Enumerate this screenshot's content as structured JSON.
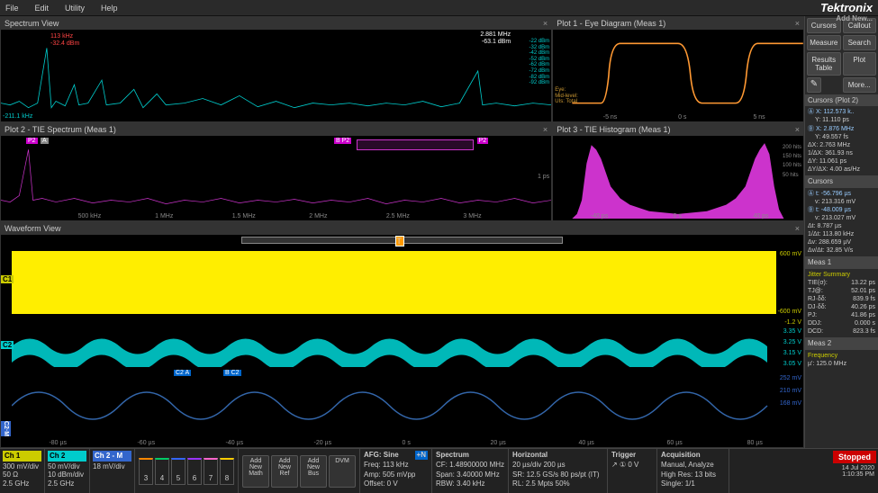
{
  "menu": {
    "file": "File",
    "edit": "Edit",
    "utility": "Utility",
    "help": "Help"
  },
  "brand": {
    "name": "Tektronix",
    "sub": "Add New..."
  },
  "panels": {
    "spectrum": {
      "title": "Spectrum View",
      "marker_freq": "113 kHz",
      "marker_amp": "-32.4 dBm",
      "readout_freq": "2.881 MHz",
      "readout_amp": "-63.1 dBm",
      "left_ref": "-211.1 kHz",
      "y_labels": [
        "-22 dBm",
        "-32 dBm",
        "-42 dBm",
        "-52 dBm",
        "-62 dBm",
        "-72 dBm",
        "-82 dBm",
        "-92 dBm"
      ],
      "eye_labels": [
        "Eye:",
        "Mid-level:",
        "UIs: Total"
      ]
    },
    "eye": {
      "title": "Plot 1 - Eye Diagram (Meas 1)",
      "x_ticks": [
        "-5 ns",
        "0 s",
        "5 ns"
      ]
    },
    "tie_spec": {
      "title": "Plot 2 - TIE Spectrum (Meas 1)",
      "markers": [
        "P2",
        "A",
        "B",
        "P2",
        "P2"
      ],
      "x_ticks": [
        "500 kHz",
        "1 MHz",
        "1.5 MHz",
        "2 MHz",
        "2.5 MHz",
        "3 MHz"
      ],
      "y_ticks": [
        "1 ps"
      ]
    },
    "tie_hist": {
      "title": "Plot 3 - TIE Histogram (Meas 1)",
      "y_ticks": [
        "200 hits",
        "150 hits",
        "100 hits",
        "50 hits"
      ],
      "x_ticks": [
        "-40 ps",
        "0 s",
        "40 ps"
      ]
    },
    "waveform": {
      "title": "Waveform View",
      "ch1_label": "C1",
      "ch2_label": "C2",
      "m_label": "C2·M",
      "x_ticks": [
        "-80 µs",
        "-60 µs",
        "-40 µs",
        "-20 µs",
        "0 s",
        "20 µs",
        "40 µs",
        "60 µs",
        "80 µs"
      ],
      "y1": [
        "600 mV",
        "-600 mV",
        "-1.2 V"
      ],
      "y2": [
        "3.35 V",
        "3.25 V",
        "3.15 V",
        "3.05 V"
      ],
      "y3": [
        "252 mV",
        "210 mV",
        "168 mV"
      ]
    }
  },
  "right": {
    "buttons": {
      "cursors": "Cursors",
      "callout": "Callout",
      "measure": "Measure",
      "search": "Search",
      "results": "Results Table",
      "plot": "Plot",
      "more": "More..."
    },
    "cursors_plot2": {
      "hdr": "Cursors (Plot 2)",
      "a": {
        "x": "X: 112.573 k..",
        "y": "Y: 11.110 ps"
      },
      "b": {
        "x": "X: 2.876 MHz",
        "y": "Y: 49.557 fs"
      },
      "dx": "ΔX: 2.763 MHz",
      "inv_dx": "1/ΔX: 361.93 ns",
      "dy": "ΔY: 11.061 ps",
      "dydx": "ΔY/ΔX: 4.00 as/Hz"
    },
    "cursors": {
      "hdr": "Cursors",
      "a": {
        "t": "t: -56.796 µs",
        "v": "v: 213.316 mV"
      },
      "b": {
        "t": "t: -48.009 µs",
        "v": "v: 213.027 mV"
      },
      "dt": "Δt: 8.787 µs",
      "inv_dt": "1/Δt: 113.80 kHz",
      "dv": "Δv: 288.659 µV",
      "dvdt": "Δv/Δt: 32.85 V/s"
    },
    "meas1": {
      "hdr": "Meas 1",
      "sub": "Jitter Summary",
      "rows": [
        [
          "TIE(σ):",
          "13.22 ps"
        ],
        [
          "TJ@:",
          "52.01 ps"
        ],
        [
          "RJ·δδ:",
          "839.9 fs"
        ],
        [
          "DJ·δδ:",
          "40.26 ps"
        ],
        [
          "PJ:",
          "41.86 ps"
        ],
        [
          "DDJ:",
          "0.000 s"
        ],
        [
          "DCD:",
          "823.3 fs"
        ]
      ]
    },
    "meas2": {
      "hdr": "Meas 2",
      "sub": "Frequency",
      "val": "µ': 125.0 MHz"
    }
  },
  "bottom": {
    "ch1": {
      "label": "Ch 1",
      "l1": "300 mV/div",
      "l2": "50 Ω",
      "l3": "2.5 GHz"
    },
    "ch2": {
      "label": "Ch 2",
      "l1": "50 mV/div",
      "l2": "10 dBm/div",
      "l3": "2.5 GHz"
    },
    "ch2m": {
      "label": "Ch 2 - M",
      "l1": "18 mV/div"
    },
    "nums": [
      "3",
      "4",
      "5",
      "6",
      "7",
      "8"
    ],
    "num_colors": [
      "#ff8800",
      "#00cc66",
      "#3366ff",
      "#9933ff",
      "#ff66cc",
      "#ffcc00"
    ],
    "adds": [
      "Add New Math",
      "Add New Ref",
      "Add New Bus",
      "DVM"
    ],
    "afg": {
      "hdr": "AFG: Sine",
      "rows": [
        "Freq: 113 kHz",
        "Amp: 505 mVpp",
        "Offset: 0 V"
      ],
      "badge": "+N"
    },
    "spectrum": {
      "hdr": "Spectrum",
      "rows": [
        "CF: 1.48900000 MHz",
        "Span: 3.40000 MHz",
        "RBW: 3.40 kHz"
      ]
    },
    "horiz": {
      "hdr": "Horizontal",
      "rows": [
        "20 µs/div   200 µs",
        "SR: 12.5 GS/s   80 ps/pt (IT)",
        "RL: 2.5 Mpts   50%"
      ]
    },
    "trigger": {
      "hdr": "Trigger",
      "val": "↗ ① 0 V"
    },
    "acq": {
      "hdr": "Acquisition",
      "rows": [
        "Manual,  Analyze",
        "High Res: 13 bits",
        "Single: 1/1"
      ]
    },
    "stopped": "Stopped",
    "date": "14 Jul 2020",
    "time": "1:10:35 PM"
  }
}
